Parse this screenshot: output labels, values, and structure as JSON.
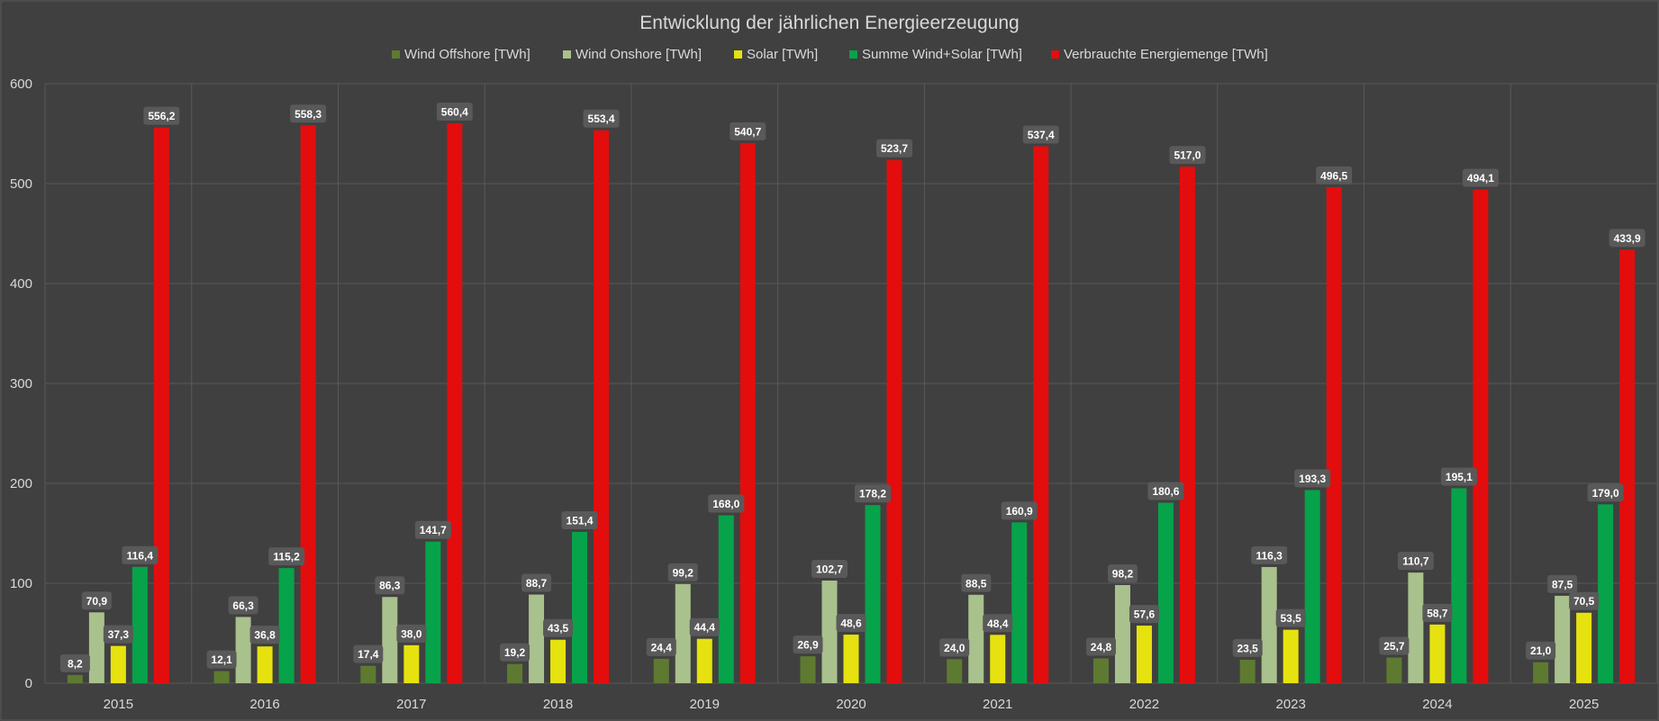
{
  "chart_data": {
    "type": "bar",
    "title": "Entwicklung der jährlichen Energieerzeugung",
    "xlabel": "",
    "ylabel": "",
    "ylim": [
      0,
      600
    ],
    "yticks": [
      0,
      100,
      200,
      300,
      400,
      500,
      600
    ],
    "grid": true,
    "legend_position": "top",
    "categories": [
      "2015",
      "2016",
      "2017",
      "2018",
      "2019",
      "2020",
      "2021",
      "2022",
      "2023",
      "2024",
      "2025"
    ],
    "series": [
      {
        "name": "Wind Offshore [TWh]",
        "color": "#5e7a31",
        "values": [
          8.2,
          12.1,
          17.4,
          19.2,
          24.4,
          26.9,
          24.0,
          24.8,
          23.5,
          25.7,
          21.0
        ],
        "labels": [
          "8,2",
          "12,1",
          "17,4",
          "19,2",
          "24,4",
          "26,9",
          "24,0",
          "24,8",
          "23,5",
          "25,7",
          "21,0"
        ]
      },
      {
        "name": "Wind Onshore [TWh]",
        "color": "#a9c18c",
        "values": [
          70.9,
          66.3,
          86.3,
          88.7,
          99.2,
          102.7,
          88.5,
          98.2,
          116.3,
          110.7,
          87.5
        ],
        "labels": [
          "70,9",
          "66,3",
          "86,3",
          "88,7",
          "99,2",
          "102,7",
          "88,5",
          "98,2",
          "116,3",
          "110,7",
          "87,5"
        ]
      },
      {
        "name": "Solar [TWh]",
        "color": "#e6e20f",
        "values": [
          37.3,
          36.8,
          38.0,
          43.5,
          44.4,
          48.6,
          48.4,
          57.6,
          53.5,
          58.7,
          70.5
        ],
        "labels": [
          "37,3",
          "36,8",
          "38,0",
          "43,5",
          "44,4",
          "48,6",
          "48,4",
          "57,6",
          "53,5",
          "58,7",
          "70,5"
        ]
      },
      {
        "name": "Summe Wind+Solar [TWh]",
        "color": "#07a34a",
        "values": [
          116.4,
          115.2,
          141.7,
          151.4,
          168.0,
          178.2,
          160.9,
          180.6,
          193.3,
          195.1,
          179.0
        ],
        "labels": [
          "116,4",
          "115,2",
          "141,7",
          "151,4",
          "168,0",
          "178,2",
          "160,9",
          "180,6",
          "193,3",
          "195,1",
          "179,0"
        ]
      },
      {
        "name": "Verbrauchte Energiemenge [TWh]",
        "color": "#e30d0d",
        "values": [
          556.2,
          558.3,
          560.4,
          553.4,
          540.7,
          523.7,
          537.4,
          517.0,
          496.5,
          494.1,
          433.9
        ],
        "labels": [
          "556,2",
          "558,3",
          "560,4",
          "553,4",
          "540,7",
          "523,7",
          "537,4",
          "517,0",
          "496,5",
          "494,1",
          "433,9"
        ]
      }
    ]
  }
}
